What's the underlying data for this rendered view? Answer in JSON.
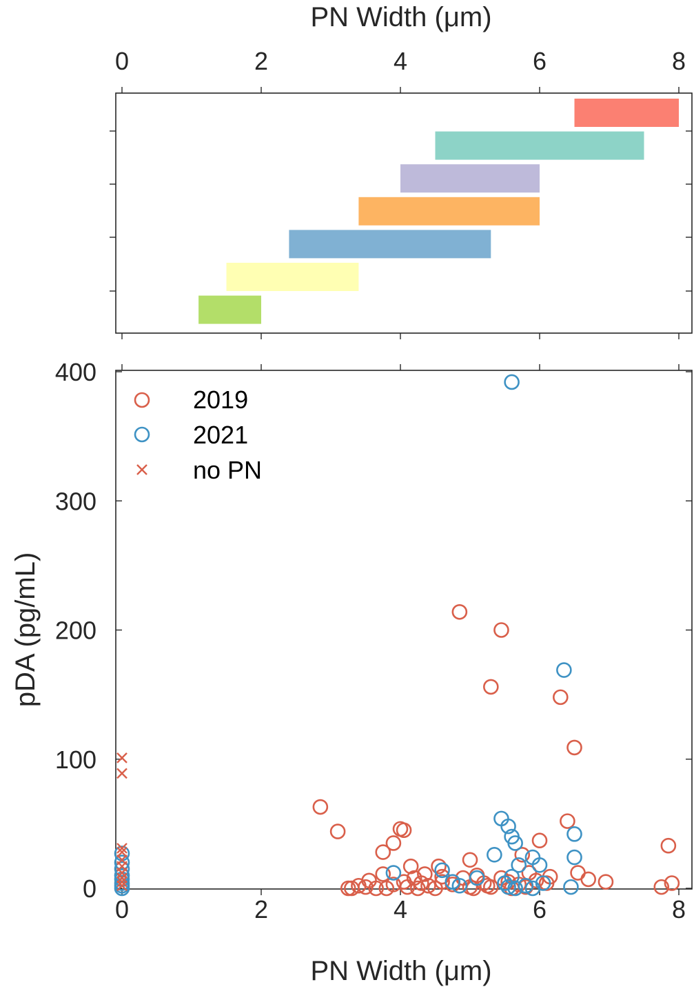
{
  "chart_data": [
    {
      "type": "range-bars",
      "x_label_top": "PN Width (μm)",
      "xlim": [
        0,
        8
      ],
      "xticks": [
        "0",
        "2",
        "4",
        "6",
        "8"
      ],
      "bars": [
        {
          "start": 6.5,
          "end": 8.0,
          "color": "#FB8072"
        },
        {
          "start": 4.5,
          "end": 7.5,
          "color": "#8DD3C7"
        },
        {
          "start": 4.0,
          "end": 6.0,
          "color": "#BEBADA"
        },
        {
          "start": 3.4,
          "end": 6.0,
          "color": "#FDB462"
        },
        {
          "start": 2.4,
          "end": 5.3,
          "color": "#80B1D3"
        },
        {
          "start": 1.5,
          "end": 3.4,
          "color": "#FFFFB3"
        },
        {
          "start": 1.1,
          "end": 2.0,
          "color": "#B3DE69"
        }
      ]
    },
    {
      "type": "scatter",
      "xlabel": "PN Width (μm)",
      "ylabel": "pDA (pg/mL)",
      "xlim": [
        0,
        8
      ],
      "ylim": [
        0,
        400
      ],
      "xticks": [
        "0",
        "2",
        "4",
        "6",
        "8"
      ],
      "yticks": [
        "0",
        "100",
        "200",
        "300",
        "400"
      ],
      "legend_position": "top-left",
      "series": [
        {
          "name": "2019",
          "marker": "circle",
          "color": "#D95F4A",
          "points": [
            [
              4.85,
              214
            ],
            [
              5.45,
              200
            ],
            [
              5.3,
              156
            ],
            [
              6.3,
              148
            ],
            [
              6.5,
              109
            ],
            [
              2.85,
              63
            ],
            [
              3.1,
              44
            ],
            [
              4.0,
              46
            ],
            [
              4.05,
              45
            ],
            [
              3.9,
              35
            ],
            [
              3.75,
              28
            ],
            [
              5.0,
              22
            ],
            [
              6.4,
              52
            ],
            [
              6.0,
              37
            ],
            [
              5.75,
              26
            ],
            [
              7.85,
              33
            ],
            [
              4.15,
              17
            ],
            [
              4.55,
              17
            ],
            [
              4.35,
              11
            ],
            [
              4.2,
              8
            ],
            [
              4.05,
              5
            ],
            [
              3.75,
              11
            ],
            [
              3.55,
              6
            ],
            [
              3.25,
              0
            ],
            [
              3.3,
              0
            ],
            [
              3.4,
              2
            ],
            [
              3.5,
              1
            ],
            [
              3.65,
              0
            ],
            [
              3.8,
              0
            ],
            [
              3.9,
              3
            ],
            [
              4.1,
              1
            ],
            [
              4.25,
              0
            ],
            [
              4.4,
              2
            ],
            [
              4.5,
              0
            ],
            [
              4.6,
              5
            ],
            [
              4.75,
              3
            ],
            [
              4.9,
              8
            ],
            [
              5.0,
              1
            ],
            [
              5.1,
              10
            ],
            [
              5.2,
              4
            ],
            [
              5.3,
              1
            ],
            [
              5.45,
              8
            ],
            [
              5.55,
              5
            ],
            [
              5.7,
              3
            ],
            [
              5.85,
              12
            ],
            [
              5.95,
              6
            ],
            [
              6.1,
              4
            ],
            [
              6.15,
              9
            ],
            [
              6.55,
              12
            ],
            [
              6.7,
              7
            ],
            [
              6.95,
              5
            ],
            [
              7.75,
              1
            ],
            [
              7.9,
              4
            ],
            [
              4.3,
              4
            ],
            [
              4.6,
              9
            ],
            [
              5.05,
              0
            ],
            [
              5.25,
              2
            ],
            [
              5.6,
              0
            ],
            [
              5.8,
              1
            ]
          ]
        },
        {
          "name": "2021",
          "marker": "circle",
          "color": "#3E92C4",
          "points": [
            [
              5.6,
              392
            ],
            [
              6.35,
              169
            ],
            [
              5.45,
              54
            ],
            [
              5.55,
              48
            ],
            [
              5.6,
              40
            ],
            [
              5.65,
              35
            ],
            [
              6.5,
              42
            ],
            [
              6.5,
              24
            ],
            [
              5.35,
              26
            ],
            [
              5.7,
              18
            ],
            [
              5.9,
              24
            ],
            [
              6.0,
              18
            ],
            [
              4.6,
              14
            ],
            [
              3.9,
              12
            ],
            [
              4.75,
              5
            ],
            [
              5.1,
              8
            ],
            [
              5.5,
              4
            ],
            [
              5.55,
              1
            ],
            [
              5.65,
              0
            ],
            [
              5.8,
              2
            ],
            [
              5.9,
              0
            ],
            [
              6.05,
              4
            ],
            [
              6.45,
              1
            ],
            [
              4.85,
              2
            ],
            [
              5.6,
              9
            ],
            [
              0.0,
              27
            ],
            [
              0.0,
              20
            ],
            [
              0.0,
              15
            ],
            [
              0.0,
              10
            ],
            [
              0.0,
              7
            ],
            [
              0.0,
              4
            ],
            [
              0.0,
              2
            ],
            [
              0.0,
              0
            ]
          ]
        },
        {
          "name": "no PN",
          "marker": "x",
          "color": "#D95F4A",
          "points": [
            [
              0.0,
              101
            ],
            [
              0.0,
              89
            ],
            [
              0.0,
              31
            ],
            [
              0.0,
              28
            ],
            [
              0.0,
              22
            ],
            [
              0.0,
              17
            ],
            [
              0.0,
              12
            ],
            [
              0.0,
              8
            ],
            [
              0.0,
              5
            ],
            [
              0.0,
              2
            ]
          ]
        }
      ]
    }
  ]
}
